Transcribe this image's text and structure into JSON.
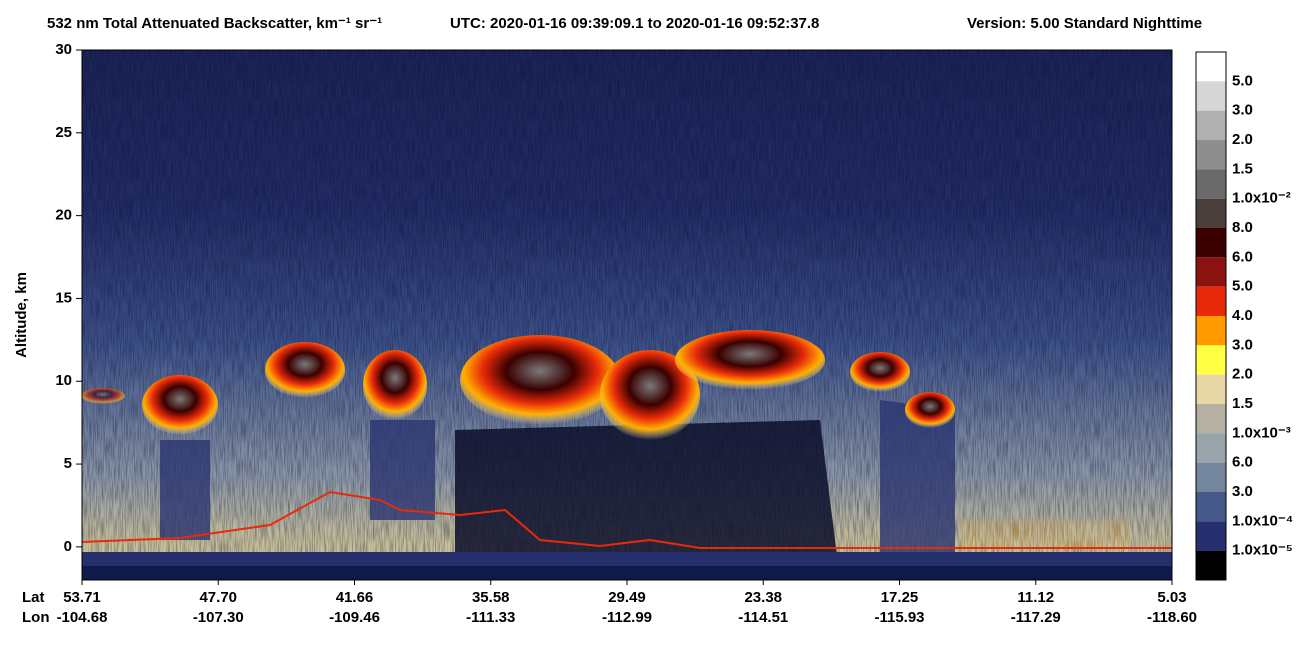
{
  "chart_data": {
    "type": "heatmap",
    "title": "532 nm Total Attenuated Backscatter, km⁻¹ sr⁻¹",
    "time_range": "UTC:  2020-01-16 09:39:09.1  to  2020-01-16 09:52:37.8",
    "version": "Version: 5.00  Standard  Nighttime",
    "y_label": "Altitude, km",
    "ylim": [
      -2,
      30
    ],
    "yticks": [
      0,
      5,
      10,
      15,
      20,
      25,
      30
    ],
    "lat_title": "Lat",
    "lon_title": "Lon",
    "lat_labels": [
      "53.71",
      "47.70",
      "41.66",
      "35.58",
      "29.49",
      "23.38",
      "17.25",
      "11.12",
      "5.03"
    ],
    "lon_labels": [
      "-104.68",
      "-107.30",
      "-109.46",
      "-111.33",
      "-112.99",
      "-114.51",
      "-115.93",
      "-117.29",
      "-118.60"
    ],
    "colorbar": {
      "labels": [
        "5.0",
        "3.0",
        "2.0",
        "1.5",
        "1.0x10⁻²",
        "8.0",
        "6.0",
        "5.0",
        "4.0",
        "3.0",
        "2.0",
        "1.5",
        "1.0x10⁻³",
        "6.0",
        "3.0",
        "1.0x10⁻⁴",
        "1.0x10⁻⁵"
      ],
      "colors": [
        "#ffffff",
        "#d6d6d6",
        "#b0b0b0",
        "#8e8e8e",
        "#6a6a6a",
        "#4a3f3a",
        "#3a0000",
        "#8c1410",
        "#e82a0a",
        "#ff9a00",
        "#ffff44",
        "#e8d8a8",
        "#b4b0a2",
        "#98a4aa",
        "#74869e",
        "#44588a",
        "#26306e",
        "#000000"
      ]
    }
  }
}
